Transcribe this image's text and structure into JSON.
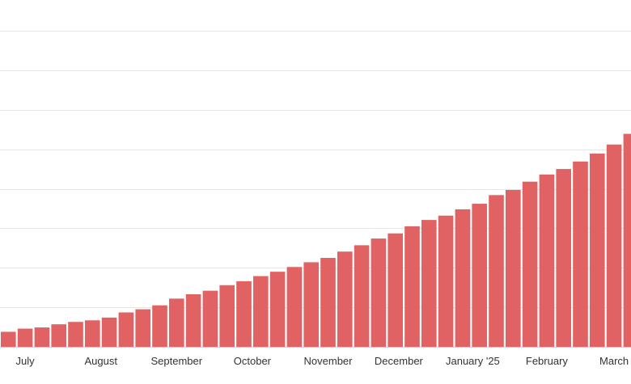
{
  "chart_data": {
    "type": "bar",
    "title": "",
    "xlabel": "",
    "ylabel": "",
    "y_tick_labels_visible": false,
    "grid": true,
    "legend": "none",
    "ylim": [
      0,
      8
    ],
    "y_gridlines": [
      1,
      2,
      3,
      4,
      5,
      6,
      7,
      8
    ],
    "colors": {
      "bar": "#e06262",
      "grid": "#e6e6e6",
      "axis": "#cfcfcf",
      "text": "#333333"
    },
    "month_labels": [
      {
        "label": "July",
        "at_bar": 1
      },
      {
        "label": "August",
        "at_bar": 5.5
      },
      {
        "label": "September",
        "at_bar": 10
      },
      {
        "label": "October",
        "at_bar": 14.5
      },
      {
        "label": "November",
        "at_bar": 19
      },
      {
        "label": "December",
        "at_bar": 23.2
      },
      {
        "label": "January '25",
        "at_bar": 27.6
      },
      {
        "label": "February",
        "at_bar": 32
      },
      {
        "label": "March",
        "at_bar": 36
      }
    ],
    "values": [
      0.38,
      0.46,
      0.49,
      0.57,
      0.63,
      0.67,
      0.74,
      0.87,
      0.95,
      1.05,
      1.22,
      1.33,
      1.42,
      1.56,
      1.66,
      1.79,
      1.9,
      2.02,
      2.14,
      2.25,
      2.41,
      2.57,
      2.74,
      2.87,
      3.05,
      3.21,
      3.32,
      3.48,
      3.62,
      3.84,
      3.97,
      4.18,
      4.36,
      4.5,
      4.69,
      4.89,
      5.12,
      5.39,
      5.63,
      5.83
    ]
  }
}
